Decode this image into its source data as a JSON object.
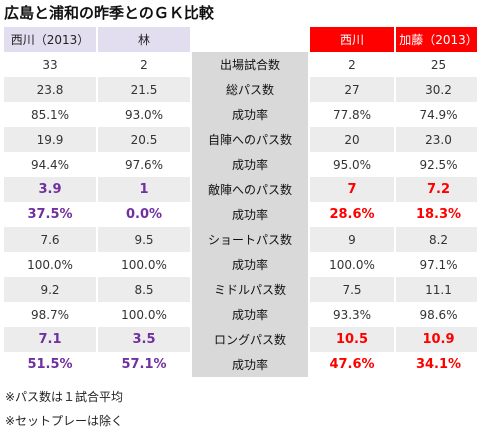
{
  "title": "広島と浦和の昨季とのＧＫ比較",
  "headers": {
    "left1": "西川（2013）",
    "left2": "林",
    "right1": "西川",
    "right2": "加藤（2013）"
  },
  "rows": [
    {
      "l1": "33",
      "l2": "2",
      "label": "出場試合数",
      "r1": "2",
      "r2": "25",
      "hl": false
    },
    {
      "l1": "23.8",
      "l2": "21.5",
      "label": "総パス数",
      "r1": "27",
      "r2": "30.2",
      "hl": false
    },
    {
      "l1": "85.1%",
      "l2": "93.0%",
      "label": "成功率",
      "r1": "77.8%",
      "r2": "74.9%",
      "hl": false
    },
    {
      "l1": "19.9",
      "l2": "20.5",
      "label": "自陣へのパス数",
      "r1": "20",
      "r2": "23.0",
      "hl": false
    },
    {
      "l1": "94.4%",
      "l2": "97.6%",
      "label": "成功率",
      "r1": "95.0%",
      "r2": "92.5%",
      "hl": false
    },
    {
      "l1": "3.9",
      "l2": "1",
      "label": "敵陣へのパス数",
      "r1": "7",
      "r2": "7.2",
      "hl": true
    },
    {
      "l1": "37.5%",
      "l2": "0.0%",
      "label": "成功率",
      "r1": "28.6%",
      "r2": "18.3%",
      "hl": true
    },
    {
      "l1": "7.6",
      "l2": "9.5",
      "label": "ショートパス数",
      "r1": "9",
      "r2": "8.2",
      "hl": false
    },
    {
      "l1": "100.0%",
      "l2": "100.0%",
      "label": "成功率",
      "r1": "100.0%",
      "r2": "97.1%",
      "hl": false
    },
    {
      "l1": "9.2",
      "l2": "8.5",
      "label": "ミドルパス数",
      "r1": "7.5",
      "r2": "11.1",
      "hl": false
    },
    {
      "l1": "98.7%",
      "l2": "100.0%",
      "label": "成功率",
      "r1": "93.3%",
      "r2": "98.6%",
      "hl": false
    },
    {
      "l1": "7.1",
      "l2": "3.5",
      "label": "ロングパス数",
      "r1": "10.5",
      "r2": "10.9",
      "hl": true
    },
    {
      "l1": "51.5%",
      "l2": "57.1%",
      "label": "成功率",
      "r1": "47.6%",
      "r2": "34.1%",
      "hl": true
    }
  ],
  "notes": [
    "※パス数は１試合平均",
    "※セットプレーは除く"
  ],
  "colors": {
    "left_header_bg": "#e2def0",
    "right_header_bg": "#ff0000",
    "left_highlight": "#7030a0",
    "right_highlight": "#ff0000",
    "label_bg": "#d9d9d9",
    "row_shade": "#ececec"
  }
}
